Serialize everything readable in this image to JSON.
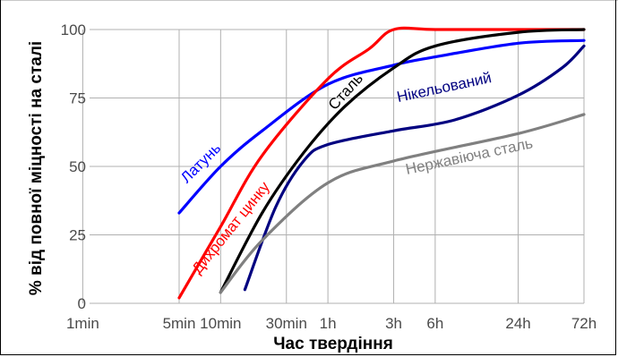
{
  "chart_data": {
    "type": "line",
    "xlabel": "Час твердіння",
    "ylabel": "% від повної міцності на сталі",
    "x_scale": "log",
    "x_ticks": [
      {
        "label": "1min",
        "minutes": 1
      },
      {
        "label": "5min",
        "minutes": 5
      },
      {
        "label": "10min",
        "minutes": 10
      },
      {
        "label": "30min",
        "minutes": 30
      },
      {
        "label": "1h",
        "minutes": 60
      },
      {
        "label": "3h",
        "minutes": 180
      },
      {
        "label": "6h",
        "minutes": 360
      },
      {
        "label": "24h",
        "minutes": 1440
      },
      {
        "label": "72h",
        "minutes": 4320
      }
    ],
    "y_ticks": [
      0,
      25,
      50,
      75,
      100
    ],
    "ylim": [
      0,
      100
    ],
    "grid": true,
    "series": [
      {
        "name": "Латунь",
        "color": "#0000ff",
        "points": [
          [
            5,
            33
          ],
          [
            10,
            50
          ],
          [
            20,
            63
          ],
          [
            60,
            80
          ],
          [
            180,
            87
          ],
          [
            360,
            90
          ],
          [
            1440,
            95
          ],
          [
            4320,
            96
          ]
        ]
      },
      {
        "name": "Дихромат цинку",
        "color": "#ff0000",
        "points": [
          [
            5,
            2
          ],
          [
            10,
            28
          ],
          [
            20,
            54
          ],
          [
            60,
            82
          ],
          [
            120,
            93
          ],
          [
            180,
            100
          ],
          [
            360,
            100
          ],
          [
            1440,
            100
          ],
          [
            4320,
            100
          ]
        ]
      },
      {
        "name": "Сталь",
        "color": "#000000",
        "points": [
          [
            10,
            4
          ],
          [
            20,
            33
          ],
          [
            40,
            55
          ],
          [
            80,
            72
          ],
          [
            180,
            86
          ],
          [
            360,
            94
          ],
          [
            1440,
            99
          ],
          [
            4320,
            100
          ]
        ]
      },
      {
        "name": "Нікельований",
        "color": "#000080",
        "points": [
          [
            15,
            5
          ],
          [
            25,
            35
          ],
          [
            40,
            52
          ],
          [
            60,
            58
          ],
          [
            180,
            63
          ],
          [
            500,
            67
          ],
          [
            1440,
            76
          ],
          [
            3000,
            86
          ],
          [
            4320,
            94
          ]
        ]
      },
      {
        "name": "Нержавіюча сталь",
        "color": "#808080",
        "points": [
          [
            10,
            4
          ],
          [
            20,
            23
          ],
          [
            60,
            44
          ],
          [
            180,
            52
          ],
          [
            1440,
            62
          ],
          [
            4320,
            69
          ]
        ]
      }
    ]
  }
}
